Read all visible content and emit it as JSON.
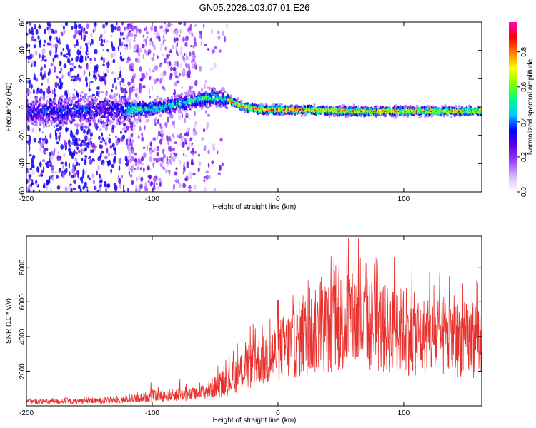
{
  "title": "GN05.2026.103.07.01.E26",
  "chart_data": [
    {
      "type": "heatmap",
      "xlabel": "Height of straight line (km)",
      "ylabel": "Frequency (Hz)",
      "xlim": [
        -200,
        162
      ],
      "ylim": [
        -60,
        60
      ],
      "xticks": [
        -200,
        -100,
        0,
        100
      ],
      "yticks": [
        -60,
        -40,
        -20,
        0,
        20,
        40,
        60
      ],
      "colorbar": {
        "label": "Normalized spectral amplitude",
        "range": [
          0,
          0.97
        ],
        "ticks": [
          0.0,
          0.2,
          0.4,
          0.6,
          0.8
        ],
        "tick_labels": [
          "0.0",
          "0.2",
          "0.4",
          "0.6",
          "0.8"
        ],
        "colormap": [
          "#ffffff",
          "#d8b8ff",
          "#9a40ff",
          "#5a00e0",
          "#0000ff",
          "#00c8ff",
          "#00ff90",
          "#80ff00",
          "#ffff00",
          "#ff8000",
          "#ff0000",
          "#ff00c0"
        ]
      },
      "ridge": {
        "x": [
          -200,
          -180,
          -160,
          -140,
          -120,
          -100,
          -90,
          -80,
          -70,
          -60,
          -50,
          -40,
          -30,
          -20,
          -10,
          0,
          20,
          40,
          60,
          80,
          100,
          120,
          140,
          160
        ],
        "y": [
          -3,
          -3,
          -3,
          -2,
          -2,
          -1,
          0,
          2,
          4,
          6,
          7,
          5,
          1,
          -1,
          -2,
          -2,
          -2,
          -2.5,
          -3,
          -3,
          -3,
          -3,
          -3,
          -3
        ]
      }
    },
    {
      "type": "line",
      "xlabel": "Height of straight line (km)",
      "ylabel": "SNR (10 * v/v)",
      "xlim": [
        -200,
        162
      ],
      "ylim": [
        0,
        9800
      ],
      "xticks": [
        -200,
        -100,
        0,
        100
      ],
      "yticks": [
        2000,
        4000,
        6000,
        8000
      ],
      "color": "#e8302c",
      "envelope": {
        "x": [
          -200,
          -150,
          -120,
          -100,
          -90,
          -80,
          -70,
          -60,
          -50,
          -40,
          -30,
          -20,
          -10,
          0,
          10,
          20,
          30,
          40,
          50,
          60,
          70,
          80,
          90,
          100,
          110,
          120,
          130,
          140,
          150,
          162
        ],
        "y": [
          280,
          320,
          420,
          650,
          700,
          800,
          750,
          900,
          1300,
          1700,
          2300,
          2800,
          3200,
          3700,
          4200,
          4700,
          5000,
          5300,
          5500,
          5700,
          5600,
          5300,
          5100,
          5100,
          4800,
          4600,
          4600,
          4500,
          4500,
          4700
        ]
      },
      "peaks": [
        {
          "x": -101,
          "y": 1350
        },
        {
          "x": -78,
          "y": 1550
        },
        {
          "x": -22,
          "y": 4600
        },
        {
          "x": 46,
          "y": 8100
        },
        {
          "x": 56,
          "y": 9700
        },
        {
          "x": 64,
          "y": 9700
        },
        {
          "x": 93,
          "y": 8600
        },
        {
          "x": 158,
          "y": 7300
        }
      ]
    }
  ]
}
